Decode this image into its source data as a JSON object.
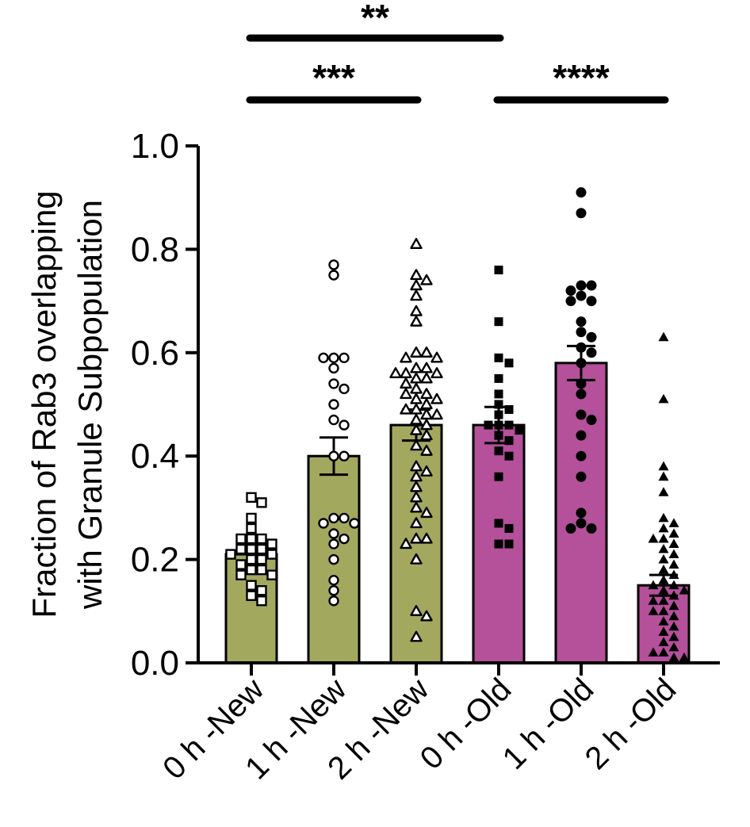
{
  "chart_data": {
    "type": "bar",
    "ylabel_lines": [
      "Fraction of Rab3 overlapping",
      "with Granule Subpopulation"
    ],
    "ylim": [
      0.0,
      1.0
    ],
    "yticks": [
      "0.0",
      "0.2",
      "0.4",
      "0.6",
      "0.8",
      "1.0"
    ],
    "categories": [
      "0 h -New",
      "1 h -New",
      "2 h -New",
      "0 h -Old",
      "1 h -Old",
      "2 h -Old"
    ],
    "colors": {
      "New": "#a3a85f",
      "Old": "#b5509b"
    },
    "bars": [
      {
        "group": "New",
        "mean": 0.21,
        "sem": 0.012,
        "marker": "square-open",
        "points": [
          0.32,
          0.31,
          0.28,
          0.26,
          0.24,
          0.24,
          0.23,
          0.22,
          0.22,
          0.21,
          0.21,
          0.2,
          0.2,
          0.19,
          0.18,
          0.17,
          0.17,
          0.15,
          0.14,
          0.13,
          0.12,
          0.24,
          0.22,
          0.18
        ]
      },
      {
        "group": "New",
        "mean": 0.4,
        "sem": 0.036,
        "marker": "circle-open",
        "points": [
          0.77,
          0.75,
          0.59,
          0.59,
          0.59,
          0.57,
          0.54,
          0.53,
          0.5,
          0.47,
          0.46,
          0.4,
          0.4,
          0.28,
          0.28,
          0.27,
          0.27,
          0.25,
          0.24,
          0.23,
          0.2,
          0.16,
          0.14,
          0.12
        ]
      },
      {
        "group": "New",
        "mean": 0.46,
        "sem": 0.03,
        "marker": "triangle-open",
        "points": [
          0.81,
          0.75,
          0.74,
          0.73,
          0.71,
          0.68,
          0.66,
          0.6,
          0.6,
          0.59,
          0.59,
          0.57,
          0.57,
          0.56,
          0.56,
          0.56,
          0.55,
          0.55,
          0.54,
          0.53,
          0.52,
          0.52,
          0.51,
          0.51,
          0.5,
          0.49,
          0.49,
          0.48,
          0.48,
          0.47,
          0.46,
          0.45,
          0.44,
          0.42,
          0.41,
          0.38,
          0.37,
          0.36,
          0.34,
          0.32,
          0.3,
          0.29,
          0.27,
          0.24,
          0.24,
          0.23,
          0.2,
          0.09,
          0.1,
          0.05
        ]
      },
      {
        "group": "Old",
        "mean": 0.46,
        "sem": 0.035,
        "marker": "square-filled",
        "points": [
          0.76,
          0.66,
          0.59,
          0.58,
          0.55,
          0.52,
          0.5,
          0.49,
          0.48,
          0.46,
          0.46,
          0.46,
          0.45,
          0.44,
          0.43,
          0.41,
          0.4,
          0.36,
          0.27,
          0.26,
          0.23,
          0.23
        ]
      },
      {
        "group": "Old",
        "mean": 0.58,
        "sem": 0.033,
        "marker": "circle-filled",
        "points": [
          0.91,
          0.87,
          0.73,
          0.73,
          0.72,
          0.71,
          0.7,
          0.7,
          0.66,
          0.64,
          0.63,
          0.61,
          0.6,
          0.58,
          0.54,
          0.52,
          0.48,
          0.47,
          0.44,
          0.4,
          0.36,
          0.29,
          0.27,
          0.26,
          0.26
        ]
      },
      {
        "group": "Old",
        "mean": 0.15,
        "sem": 0.02,
        "marker": "triangle-filled",
        "points": [
          0.63,
          0.51,
          0.38,
          0.36,
          0.33,
          0.28,
          0.27,
          0.26,
          0.25,
          0.24,
          0.24,
          0.23,
          0.22,
          0.21,
          0.2,
          0.19,
          0.18,
          0.17,
          0.16,
          0.15,
          0.15,
          0.14,
          0.14,
          0.13,
          0.12,
          0.12,
          0.11,
          0.1,
          0.1,
          0.09,
          0.08,
          0.07,
          0.06,
          0.05,
          0.04,
          0.03,
          0.02,
          0.02,
          0.01,
          0.01
        ]
      }
    ],
    "significance": [
      {
        "from": 0,
        "to": 3,
        "label": "**"
      },
      {
        "from": 0,
        "to": 2,
        "label": "***"
      },
      {
        "from": 3,
        "to": 5,
        "label": "****"
      }
    ]
  }
}
